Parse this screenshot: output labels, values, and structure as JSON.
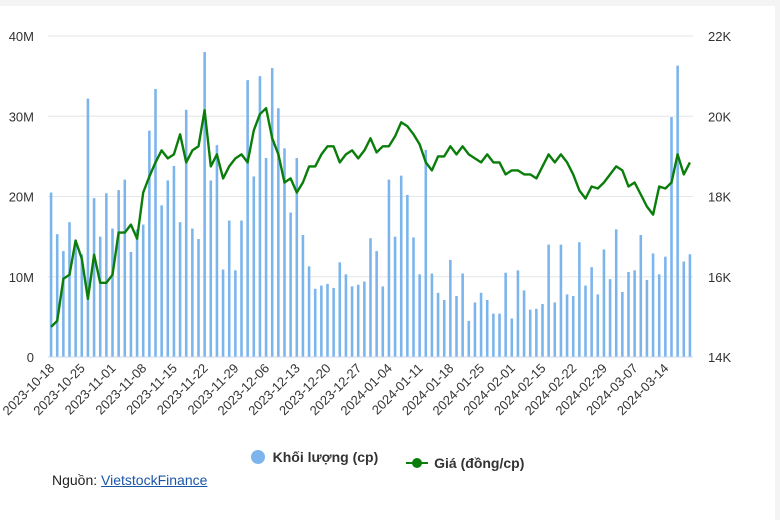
{
  "colors": {
    "volume": "#7cb5ec",
    "price": "#0a7d0a",
    "grid": "#e6e6e6"
  },
  "legend": {
    "volume_label": "Khối lượng (cp)",
    "price_label": "Giá (đồng/cp)"
  },
  "source": {
    "prefix": "Nguồn: ",
    "link_text": "VietstockFinance"
  },
  "chart_data": {
    "type": "bar+line",
    "left_axis": {
      "ticks": [
        "0",
        "10M",
        "20M",
        "30M",
        "40M"
      ],
      "range": [
        0,
        40000000
      ]
    },
    "right_axis": {
      "ticks": [
        "14K",
        "16K",
        "18K",
        "20K",
        "22K"
      ],
      "range": [
        14000,
        22000
      ]
    },
    "x_tick_labels": [
      "2023-10-18",
      "2023-10-25",
      "2023-11-01",
      "2023-11-08",
      "2023-11-15",
      "2023-11-22",
      "2023-11-29",
      "2023-12-06",
      "2023-12-13",
      "2023-12-20",
      "2023-12-27",
      "2024-01-04",
      "2024-01-11",
      "2024-01-18",
      "2024-01-25",
      "2024-02-01",
      "2024-02-15",
      "2024-02-22",
      "2024-02-29",
      "2024-03-07",
      "2024-03-14"
    ],
    "x_tick_index": [
      0,
      5,
      10,
      15,
      20,
      25,
      30,
      35,
      40,
      45,
      50,
      55,
      60,
      65,
      70,
      75,
      80,
      85,
      90,
      95,
      100
    ],
    "series": [
      {
        "name": "Khối lượng (cp)",
        "type": "bar",
        "values": [
          20.5,
          15.3,
          13.2,
          16.8,
          14.6,
          12.8,
          32.2,
          19.8,
          15.0,
          20.4,
          16.0,
          20.8,
          22.1,
          13.1,
          15.9,
          16.5,
          28.2,
          33.4,
          18.9,
          22.0,
          23.8,
          16.8,
          30.8,
          16.0,
          14.7,
          38.0,
          22.0,
          26.4,
          10.9,
          17.0,
          10.8,
          17.0,
          34.5,
          22.5,
          35.0,
          24.8,
          36.0,
          31.0,
          26.0,
          18.0,
          24.8,
          15.2,
          11.3,
          8.5,
          8.9,
          9.1,
          8.6,
          11.8,
          10.3,
          8.8,
          9.0,
          9.4,
          14.8,
          13.2,
          8.8,
          22.1,
          15.0,
          22.6,
          20.2,
          14.9,
          10.3,
          25.8,
          10.4,
          8.0,
          7.1,
          12.1,
          7.6,
          10.4,
          4.5,
          6.8,
          8.0,
          7.1,
          5.4,
          5.4,
          10.5,
          4.8,
          10.8,
          8.3,
          5.9,
          6.0,
          6.6,
          14.0,
          6.8,
          14.0,
          7.8,
          7.6,
          14.3,
          8.9,
          11.2,
          7.8,
          13.4,
          9.7,
          15.9,
          8.1,
          10.6,
          10.8,
          15.2,
          9.6,
          12.9,
          10.3,
          12.5,
          29.9,
          36.3,
          11.9,
          12.8
        ]
      },
      {
        "name": "Giá (đồng/cp)",
        "type": "line",
        "values": [
          14.75,
          14.9,
          15.95,
          16.05,
          16.9,
          16.45,
          15.45,
          16.55,
          15.85,
          15.85,
          16.05,
          17.1,
          17.1,
          17.3,
          16.95,
          18.1,
          18.5,
          18.85,
          19.15,
          18.95,
          19.05,
          19.55,
          18.85,
          19.15,
          19.25,
          20.15,
          18.75,
          19.05,
          18.45,
          18.75,
          18.95,
          19.05,
          18.85,
          19.65,
          20.05,
          20.2,
          19.45,
          19.05,
          18.35,
          18.45,
          18.1,
          18.35,
          18.75,
          18.75,
          19.05,
          19.25,
          19.25,
          18.85,
          19.05,
          19.15,
          18.95,
          19.15,
          19.45,
          19.1,
          19.25,
          19.25,
          19.5,
          19.85,
          19.75,
          19.55,
          19.3,
          18.85,
          18.65,
          19.0,
          19.0,
          19.25,
          19.05,
          19.25,
          19.05,
          18.95,
          18.85,
          19.05,
          18.85,
          18.85,
          18.55,
          18.65,
          18.65,
          18.55,
          18.55,
          18.45,
          18.75,
          19.05,
          18.85,
          19.05,
          18.85,
          18.55,
          18.15,
          17.95,
          18.25,
          18.2,
          18.35,
          18.55,
          18.75,
          18.65,
          18.25,
          18.35,
          18.05,
          17.75,
          17.55,
          18.25,
          18.2,
          18.35,
          19.05,
          18.55,
          18.85
        ]
      }
    ],
    "grid": true,
    "legend_position": "bottom-center"
  }
}
